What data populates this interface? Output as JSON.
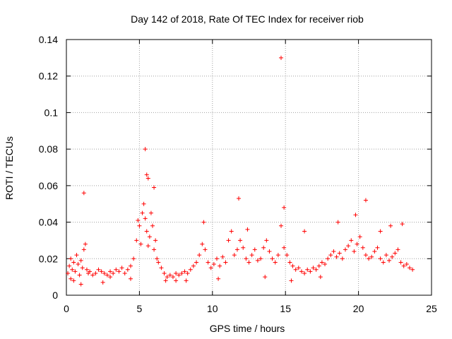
{
  "chart_data": {
    "type": "scatter",
    "title": "Day 142 of 2018, Rate Of TEC Index for receiver riob",
    "xlabel": "GPS time / hours",
    "ylabel": "ROTI / TECUs",
    "xlim": [
      0,
      25
    ],
    "ylim": [
      0,
      0.14
    ],
    "x_ticks": [
      0,
      5,
      10,
      15,
      20,
      25
    ],
    "x_tick_labels": [
      "0",
      "5",
      "10",
      "15",
      "20",
      "25"
    ],
    "y_ticks": [
      0,
      0.02,
      0.04,
      0.06,
      0.08,
      0.1,
      0.12,
      0.14
    ],
    "y_tick_labels": [
      "0",
      "0.02",
      "0.04",
      "0.06",
      "0.08",
      "0.1",
      "0.12",
      "0.14"
    ],
    "grid": true,
    "marker": "+",
    "color": "#ff0000",
    "series": [
      {
        "name": "ROTI",
        "x": [
          0.1,
          0.2,
          0.3,
          0.4,
          0.5,
          0.6,
          0.7,
          0.8,
          0.9,
          1.0,
          1.1,
          1.2,
          1.3,
          1.4,
          1.5,
          1.6,
          1.8,
          2.0,
          2.2,
          2.4,
          2.6,
          2.8,
          3.0,
          3.2,
          3.4,
          3.6,
          3.8,
          4.0,
          4.2,
          4.4,
          4.6,
          4.8,
          4.9,
          5.0,
          5.1,
          5.2,
          5.3,
          5.4,
          5.5,
          5.6,
          5.7,
          5.8,
          5.9,
          6.0,
          6.1,
          6.2,
          6.3,
          6.5,
          6.7,
          6.9,
          7.1,
          7.3,
          7.5,
          7.7,
          7.9,
          8.1,
          8.3,
          8.5,
          8.7,
          8.9,
          9.1,
          9.3,
          9.5,
          9.7,
          9.9,
          10.1,
          10.3,
          10.5,
          10.7,
          10.9,
          11.1,
          11.3,
          11.5,
          11.7,
          11.9,
          12.1,
          12.3,
          12.5,
          12.7,
          12.9,
          13.1,
          13.3,
          13.5,
          13.7,
          13.9,
          14.1,
          14.3,
          14.5,
          14.7,
          14.9,
          15.1,
          15.3,
          15.5,
          15.7,
          15.9,
          16.1,
          16.3,
          16.5,
          16.7,
          16.9,
          17.1,
          17.3,
          17.5,
          17.7,
          17.9,
          18.1,
          18.3,
          18.5,
          18.7,
          18.9,
          19.1,
          19.3,
          19.5,
          19.7,
          19.9,
          20.1,
          20.3,
          20.5,
          20.7,
          20.9,
          21.1,
          21.3,
          21.5,
          21.7,
          21.9,
          22.1,
          22.3,
          22.5,
          22.7,
          22.9,
          23.1,
          23.3,
          23.5,
          23.7,
          1.2,
          5.4,
          14.7,
          5.5,
          5.6,
          6.0,
          11.8,
          14.9,
          20.5,
          9.4,
          0.5,
          3.0,
          7.5,
          12.4,
          16.3,
          18.6,
          22.2,
          2.5,
          6.8,
          10.4,
          13.6,
          17.4,
          19.8,
          21.5,
          23.0,
          0.3,
          1.0,
          4.4,
          8.2,
          15.4
        ],
        "y": [
          0.012,
          0.016,
          0.02,
          0.014,
          0.018,
          0.013,
          0.022,
          0.017,
          0.011,
          0.019,
          0.015,
          0.025,
          0.028,
          0.014,
          0.012,
          0.013,
          0.011,
          0.012,
          0.014,
          0.013,
          0.012,
          0.011,
          0.013,
          0.012,
          0.014,
          0.013,
          0.015,
          0.012,
          0.014,
          0.016,
          0.02,
          0.03,
          0.041,
          0.038,
          0.028,
          0.045,
          0.05,
          0.042,
          0.035,
          0.027,
          0.032,
          0.045,
          0.038,
          0.025,
          0.03,
          0.02,
          0.018,
          0.015,
          0.012,
          0.01,
          0.011,
          0.01,
          0.012,
          0.011,
          0.012,
          0.013,
          0.012,
          0.014,
          0.016,
          0.018,
          0.022,
          0.028,
          0.025,
          0.018,
          0.015,
          0.017,
          0.02,
          0.016,
          0.021,
          0.018,
          0.03,
          0.035,
          0.022,
          0.025,
          0.03,
          0.026,
          0.02,
          0.018,
          0.022,
          0.025,
          0.019,
          0.02,
          0.026,
          0.03,
          0.024,
          0.02,
          0.018,
          0.022,
          0.038,
          0.026,
          0.022,
          0.018,
          0.016,
          0.014,
          0.015,
          0.013,
          0.012,
          0.014,
          0.013,
          0.015,
          0.014,
          0.016,
          0.018,
          0.017,
          0.02,
          0.022,
          0.024,
          0.021,
          0.023,
          0.02,
          0.025,
          0.027,
          0.03,
          0.024,
          0.028,
          0.032,
          0.026,
          0.022,
          0.02,
          0.021,
          0.024,
          0.026,
          0.02,
          0.018,
          0.022,
          0.019,
          0.021,
          0.023,
          0.025,
          0.018,
          0.016,
          0.017,
          0.015,
          0.014,
          0.056,
          0.08,
          0.13,
          0.066,
          0.064,
          0.059,
          0.053,
          0.048,
          0.052,
          0.04,
          0.008,
          0.01,
          0.008,
          0.036,
          0.035,
          0.04,
          0.038,
          0.007,
          0.008,
          0.009,
          0.01,
          0.01,
          0.044,
          0.035,
          0.039,
          0.009,
          0.006,
          0.009,
          0.008,
          0.008
        ]
      }
    ]
  }
}
